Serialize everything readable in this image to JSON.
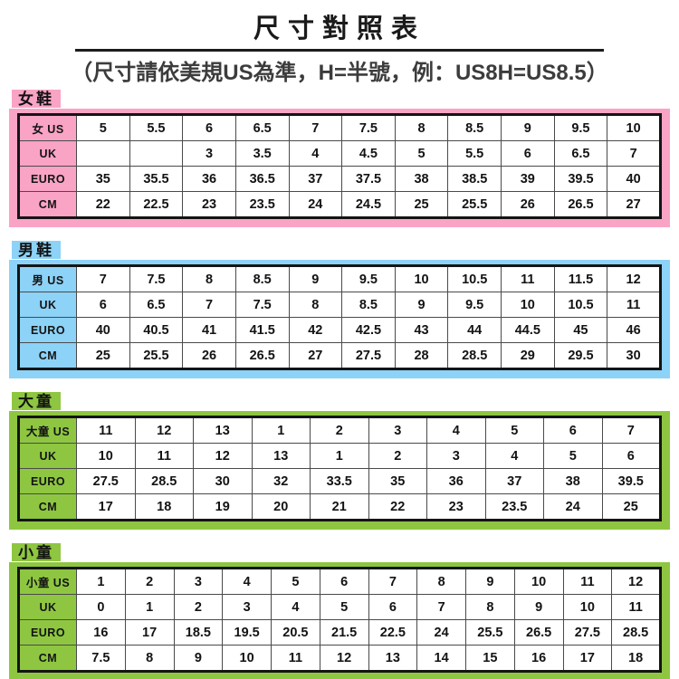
{
  "header": {
    "title": "尺寸對照表",
    "subtitle": "（尺寸請依美規US為準，H=半號，例：US8H=US8.5）"
  },
  "accent_colors": {
    "women": "#F9A3C5",
    "men": "#8DD2F7",
    "big_kids": "#8EC641",
    "little_kids": "#8EC641"
  },
  "sections": [
    {
      "label": "女鞋",
      "accent": "#F9A3C5",
      "rows": [
        {
          "header": "女 US",
          "cells": [
            "5",
            "5.5",
            "6",
            "6.5",
            "7",
            "7.5",
            "8",
            "8.5",
            "9",
            "9.5",
            "10"
          ]
        },
        {
          "header": "UK",
          "cells": [
            "",
            "",
            "3",
            "3.5",
            "4",
            "4.5",
            "5",
            "5.5",
            "6",
            "6.5",
            "7"
          ]
        },
        {
          "header": "EURO",
          "cells": [
            "35",
            "35.5",
            "36",
            "36.5",
            "37",
            "37.5",
            "38",
            "38.5",
            "39",
            "39.5",
            "40"
          ]
        },
        {
          "header": "CM",
          "cells": [
            "22",
            "22.5",
            "23",
            "23.5",
            "24",
            "24.5",
            "25",
            "25.5",
            "26",
            "26.5",
            "27"
          ]
        }
      ]
    },
    {
      "label": "男鞋",
      "accent": "#8DD2F7",
      "rows": [
        {
          "header": "男 US",
          "cells": [
            "7",
            "7.5",
            "8",
            "8.5",
            "9",
            "9.5",
            "10",
            "10.5",
            "11",
            "11.5",
            "12"
          ]
        },
        {
          "header": "UK",
          "cells": [
            "6",
            "6.5",
            "7",
            "7.5",
            "8",
            "8.5",
            "9",
            "9.5",
            "10",
            "10.5",
            "11"
          ]
        },
        {
          "header": "EURO",
          "cells": [
            "40",
            "40.5",
            "41",
            "41.5",
            "42",
            "42.5",
            "43",
            "44",
            "44.5",
            "45",
            "46"
          ]
        },
        {
          "header": "CM",
          "cells": [
            "25",
            "25.5",
            "26",
            "26.5",
            "27",
            "27.5",
            "28",
            "28.5",
            "29",
            "29.5",
            "30"
          ]
        }
      ]
    },
    {
      "label": "大童",
      "accent": "#8EC641",
      "rows": [
        {
          "header": "大童 US",
          "cells": [
            "11",
            "12",
            "13",
            "1",
            "2",
            "3",
            "4",
            "5",
            "6",
            "7"
          ]
        },
        {
          "header": "UK",
          "cells": [
            "10",
            "11",
            "12",
            "13",
            "1",
            "2",
            "3",
            "4",
            "5",
            "6"
          ]
        },
        {
          "header": "EURO",
          "cells": [
            "27.5",
            "28.5",
            "30",
            "32",
            "33.5",
            "35",
            "36",
            "37",
            "38",
            "39.5"
          ]
        },
        {
          "header": "CM",
          "cells": [
            "17",
            "18",
            "19",
            "20",
            "21",
            "22",
            "23",
            "23.5",
            "24",
            "25"
          ]
        }
      ]
    },
    {
      "label": "小童",
      "accent": "#8EC641",
      "rows": [
        {
          "header": "小童 US",
          "cells": [
            "1",
            "2",
            "3",
            "4",
            "5",
            "6",
            "7",
            "8",
            "9",
            "10",
            "11",
            "12"
          ]
        },
        {
          "header": "UK",
          "cells": [
            "0",
            "1",
            "2",
            "3",
            "4",
            "5",
            "6",
            "7",
            "8",
            "9",
            "10",
            "11"
          ]
        },
        {
          "header": "EURO",
          "cells": [
            "16",
            "17",
            "18.5",
            "19.5",
            "20.5",
            "21.5",
            "22.5",
            "24",
            "25.5",
            "26.5",
            "27.5",
            "28.5"
          ]
        },
        {
          "header": "CM",
          "cells": [
            "7.5",
            "8",
            "9",
            "10",
            "11",
            "12",
            "13",
            "14",
            "15",
            "16",
            "17",
            "18"
          ]
        }
      ]
    }
  ]
}
